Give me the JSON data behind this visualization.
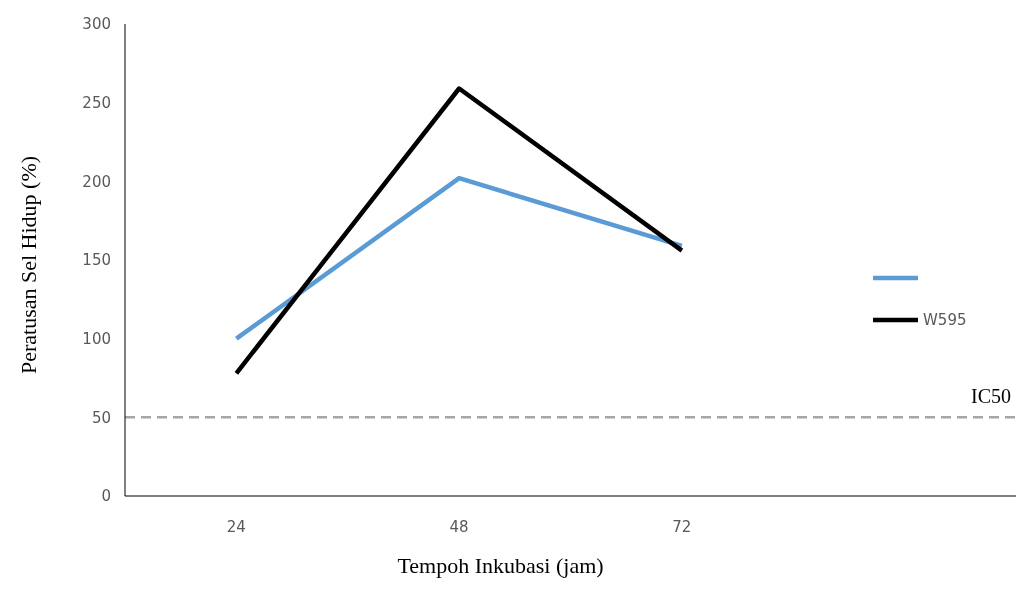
{
  "chart_data": {
    "type": "line",
    "xlabel": "Tempoh Inkubasi (jam)",
    "ylabel": "Peratusan Sel Hidup (%)",
    "categories": [
      "24",
      "48",
      "72",
      null
    ],
    "series": [
      {
        "color": "#5b9bd5",
        "values": [
          100,
          202,
          159,
          null
        ]
      },
      {
        "name": "W595",
        "color": "#000000",
        "values": [
          78,
          259,
          156,
          null
        ]
      }
    ],
    "ylim": [
      0,
      300
    ],
    "yticks": [
      0,
      50,
      100,
      150,
      200,
      250,
      300
    ],
    "grid": false,
    "legend": "right",
    "marker": "none",
    "line_style": "solid",
    "ref_lines": [
      {
        "axis": "y",
        "value": 50,
        "label": "IC50",
        "color": "#a6a6a6",
        "line_style": "dashed"
      }
    ]
  }
}
